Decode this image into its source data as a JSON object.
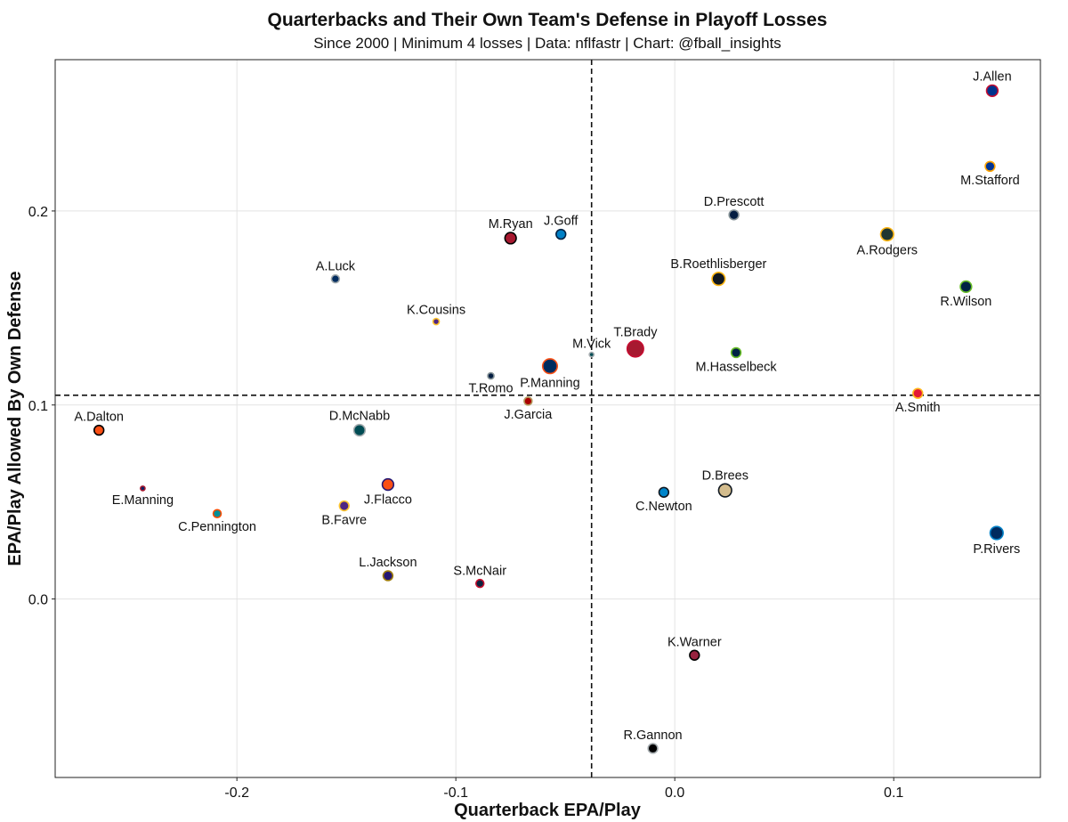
{
  "chart_data": {
    "type": "scatter",
    "title": "Quarterbacks and Their Own Team's Defense in Playoff Losses",
    "subtitle": "Since 2000 | Minimum 4 losses | Data: nflfastr | Chart: @fball_insights",
    "xlabel": "Quarterback EPA/Play",
    "ylabel": "EPA/Play Allowed By Own Defense",
    "xlim": [
      -0.283,
      0.167
    ],
    "ylim": [
      -0.092,
      0.278
    ],
    "x_ticks": [
      -0.2,
      -0.1,
      0.0,
      0.1
    ],
    "x_tick_labels": [
      "-0.2",
      "-0.1",
      "0.0",
      "0.1"
    ],
    "y_ticks": [
      0.0,
      0.1,
      0.2
    ],
    "y_tick_labels": [
      "0.0",
      "0.1",
      "0.2"
    ],
    "grid": true,
    "ref_lines": {
      "x": -0.038,
      "y": 0.105
    },
    "points": [
      {
        "name": "J.Allen",
        "x": 0.145,
        "y": 0.262,
        "size": 5,
        "fill": "#00338D",
        "stroke": "#C60C30",
        "label_pos": "above"
      },
      {
        "name": "M.Stafford",
        "x": 0.144,
        "y": 0.223,
        "size": 4,
        "fill": "#003594",
        "stroke": "#FFA300",
        "label_pos": "below"
      },
      {
        "name": "D.Prescott",
        "x": 0.027,
        "y": 0.198,
        "size": 4,
        "fill": "#041E42",
        "stroke": "#869397",
        "label_pos": "above"
      },
      {
        "name": "A.Rodgers",
        "x": 0.097,
        "y": 0.188,
        "size": 6,
        "fill": "#203731",
        "stroke": "#FFB612",
        "label_pos": "below"
      },
      {
        "name": "B.Roethlisberger",
        "x": 0.02,
        "y": 0.165,
        "size": 6,
        "fill": "#101820",
        "stroke": "#FFB612",
        "label_pos": "above"
      },
      {
        "name": "R.Wilson",
        "x": 0.133,
        "y": 0.161,
        "size": 5,
        "fill": "#002244",
        "stroke": "#69BE28",
        "label_pos": "below"
      },
      {
        "name": "M.Ryan",
        "x": -0.075,
        "y": 0.186,
        "size": 5,
        "fill": "#A71930",
        "stroke": "#000000",
        "label_pos": "above"
      },
      {
        "name": "J.Goff",
        "x": -0.052,
        "y": 0.188,
        "size": 4,
        "fill": "#0080C6",
        "stroke": "#002244",
        "label_pos": "above"
      },
      {
        "name": "A.Luck",
        "x": -0.155,
        "y": 0.165,
        "size": 3,
        "fill": "#002C5F",
        "stroke": "#A2AAAD",
        "label_pos": "above"
      },
      {
        "name": "K.Cousins",
        "x": -0.109,
        "y": 0.143,
        "size": 2,
        "fill": "#4F2683",
        "stroke": "#FFC62F",
        "label_pos": "above"
      },
      {
        "name": "M.Vick",
        "x": -0.038,
        "y": 0.126,
        "size": 1,
        "fill": "#004C54",
        "stroke": "#A5ACAF",
        "label_pos": "above"
      },
      {
        "name": "T.Brady",
        "x": -0.018,
        "y": 0.129,
        "size": 8,
        "fill": "#A71930",
        "stroke": "#C60C30",
        "label_pos": "above"
      },
      {
        "name": "M.Hasselbeck",
        "x": 0.028,
        "y": 0.127,
        "size": 4,
        "fill": "#002244",
        "stroke": "#69BE28",
        "label_pos": "below"
      },
      {
        "name": "P.Manning",
        "x": -0.057,
        "y": 0.12,
        "size": 7,
        "fill": "#002C5F",
        "stroke": "#FB4F14",
        "label_pos": "below"
      },
      {
        "name": "T.Romo",
        "x": -0.084,
        "y": 0.115,
        "size": 2,
        "fill": "#041E42",
        "stroke": "#869397",
        "label_pos": "below"
      },
      {
        "name": "J.Garcia",
        "x": -0.067,
        "y": 0.102,
        "size": 3,
        "fill": "#AA0000",
        "stroke": "#B3995D",
        "label_pos": "below"
      },
      {
        "name": "A.Smith",
        "x": 0.111,
        "y": 0.106,
        "size": 4,
        "fill": "#E31837",
        "stroke": "#FFB81C",
        "label_pos": "below"
      },
      {
        "name": "A.Dalton",
        "x": -0.263,
        "y": 0.087,
        "size": 4,
        "fill": "#FB4F14",
        "stroke": "#000000",
        "label_pos": "above"
      },
      {
        "name": "D.McNabb",
        "x": -0.144,
        "y": 0.087,
        "size": 5,
        "fill": "#004C54",
        "stroke": "#A5ACAF",
        "label_pos": "above"
      },
      {
        "name": "E.Manning",
        "x": -0.243,
        "y": 0.057,
        "size": 1,
        "fill": "#0B2265",
        "stroke": "#A71930",
        "label_pos": "below"
      },
      {
        "name": "J.Flacco",
        "x": -0.131,
        "y": 0.059,
        "size": 5,
        "fill": "#FB4F14",
        "stroke": "#241773",
        "label_pos": "below"
      },
      {
        "name": "B.Favre",
        "x": -0.151,
        "y": 0.048,
        "size": 4,
        "fill": "#4F2683",
        "stroke": "#FFC62F",
        "label_pos": "below"
      },
      {
        "name": "C.Pennington",
        "x": -0.209,
        "y": 0.044,
        "size": 3,
        "fill": "#008E97",
        "stroke": "#FC4C02",
        "label_pos": "below"
      },
      {
        "name": "D.Brees",
        "x": 0.023,
        "y": 0.056,
        "size": 6,
        "fill": "#D3BC8D",
        "stroke": "#101820",
        "label_pos": "above"
      },
      {
        "name": "C.Newton",
        "x": -0.005,
        "y": 0.055,
        "size": 4,
        "fill": "#0085CA",
        "stroke": "#101820",
        "label_pos": "below"
      },
      {
        "name": "P.Rivers",
        "x": 0.147,
        "y": 0.034,
        "size": 6,
        "fill": "#002A5E",
        "stroke": "#0080C6",
        "label_pos": "below"
      },
      {
        "name": "L.Jackson",
        "x": -0.131,
        "y": 0.012,
        "size": 4,
        "fill": "#241773",
        "stroke": "#9E7C0C",
        "label_pos": "above"
      },
      {
        "name": "S.McNair",
        "x": -0.089,
        "y": 0.008,
        "size": 3,
        "fill": "#0C2340",
        "stroke": "#C8102E",
        "label_pos": "above"
      },
      {
        "name": "K.Warner",
        "x": 0.009,
        "y": -0.029,
        "size": 4,
        "fill": "#97233F",
        "stroke": "#000000",
        "label_pos": "above"
      },
      {
        "name": "R.Gannon",
        "x": -0.01,
        "y": -0.077,
        "size": 4,
        "fill": "#000000",
        "stroke": "#A5ACAF",
        "label_pos": "above"
      }
    ]
  }
}
